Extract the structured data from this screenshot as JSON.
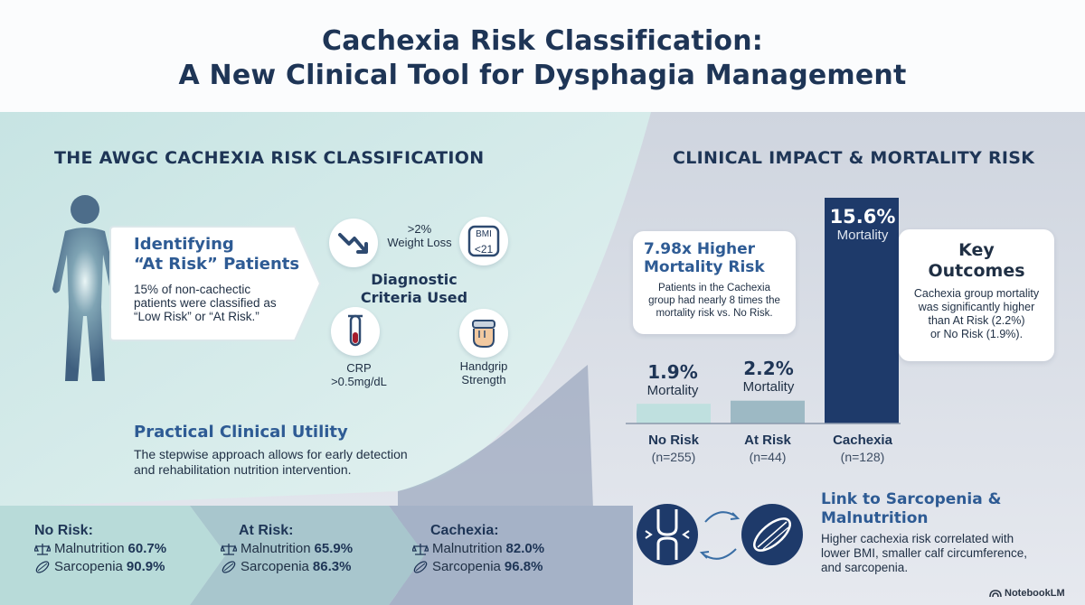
{
  "header": {
    "title_line1": "Cachexia Risk Classification:",
    "title_line2": "A New Clinical Tool for Dysphagia Management"
  },
  "left": {
    "section_title": "THE AWGC CACHEXIA RISK CLASSIFICATION",
    "identify": {
      "title_line1": "Identifying",
      "title_line2": "“At Risk” Patients",
      "body": "15% of non-cachectic patients were classified as “Low Risk” or “At Risk.”"
    },
    "criteria": {
      "title_line1": "Diagnostic",
      "title_line2": "Criteria Used",
      "weight_line1": ">2%",
      "weight_line2": "Weight Loss",
      "bmi_label": "BMI",
      "bmi_value": "<21",
      "crp_line1": "CRP",
      "crp_line2": ">0.5mg/dL",
      "grip_line1": "Handgrip",
      "grip_line2": "Strength"
    },
    "utility": {
      "title": "Practical Clinical Utility",
      "body_line1": "The stepwise approach allows for early detection",
      "body_line2": "and rehabilitation nutrition intervention."
    }
  },
  "bottom_band": [
    {
      "title": "No Risk:",
      "malnutrition_label": "Malnutrition",
      "malnutrition": "60.7%",
      "sarcopenia_label": "Sarcopenia",
      "sarcopenia": "90.9%"
    },
    {
      "title": "At Risk:",
      "malnutrition_label": "Malnutrition",
      "malnutrition": "65.9%",
      "sarcopenia_label": "Sarcopenia",
      "sarcopenia": "86.3%"
    },
    {
      "title": "Cachexia:",
      "malnutrition_label": "Malnutrition",
      "malnutrition": "82.0%",
      "sarcopenia_label": "Sarcopenia",
      "sarcopenia": "96.8%"
    }
  ],
  "right": {
    "section_title": "CLINICAL IMPACT & MORTALITY RISK",
    "risk_card": {
      "title_line1": "7.98x Higher",
      "title_line2": "Mortality Risk",
      "body_line1": "Patients in the Cachexia",
      "body_line2": "group had nearly 8 times the",
      "body_line3": "mortality risk vs. No Risk."
    },
    "outcomes": {
      "title_line1": "Key",
      "title_line2": "Outcomes",
      "body_line1": "Cachexia group mortality",
      "body_line2": "was significantly higher",
      "body_line3": "than At Risk (2.2%)",
      "body_line4": "or No Risk (1.9%)."
    },
    "link": {
      "title_line1": "Link to Sarcopenia &",
      "title_line2": "Malnutrition",
      "body_line1": "Higher cachexia risk correlated with",
      "body_line2": "lower BMI, smaller calf circumference,",
      "body_line3": "and sarcopenia."
    }
  },
  "chart_data": {
    "type": "bar",
    "categories": [
      "No Risk",
      "At Risk",
      "Cachexia"
    ],
    "category_counts": [
      "(n=255)",
      "(n=44)",
      "(n=128)"
    ],
    "values": [
      1.9,
      2.2,
      15.6
    ],
    "value_labels": [
      "1.9%",
      "2.2%",
      "15.6%"
    ],
    "value_sublabel": "Mortality",
    "colors": [
      "#bfe0df",
      "#9db9c4",
      "#1e3a6a"
    ]
  },
  "footer": {
    "brand": "NotebookLM"
  },
  "colors": {
    "navy": "#1e3556",
    "accent_blue": "#2e5b94",
    "teal_light": "#d3ebe9",
    "slate": "#c9d1de"
  }
}
